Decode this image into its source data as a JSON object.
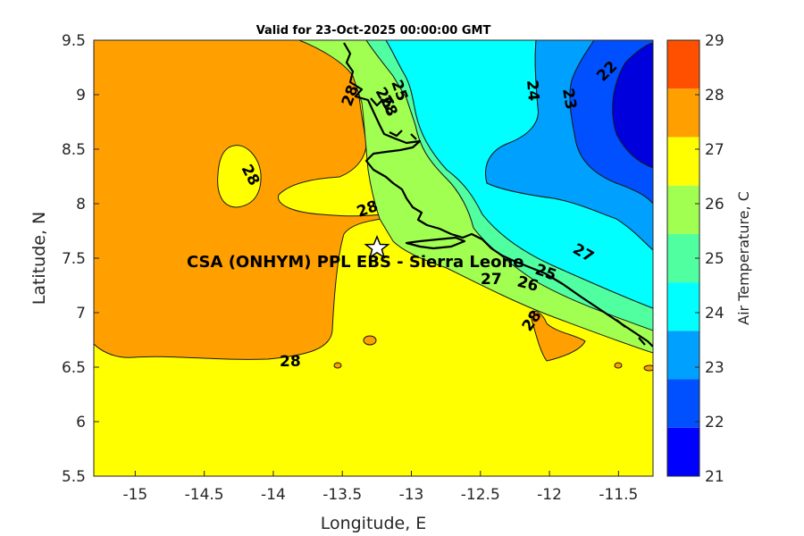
{
  "title": "Valid for 23-Oct-2025 00:00:00 GMT",
  "site_label": "CSA (ONHYM) PPL EBS - Sierra Leone",
  "axes": {
    "xlabel": "Longitude, E",
    "ylabel": "Latitude, N",
    "x_ticks": [
      "-15",
      "-14.5",
      "-14",
      "-13.5",
      "-13",
      "-12.5",
      "-12",
      "-11.5"
    ],
    "y_ticks": [
      "9.5",
      "9",
      "8.5",
      "8",
      "7.5",
      "7",
      "6.5",
      "6",
      "5.5"
    ],
    "xlim": [
      -15.3,
      -11.25
    ],
    "ylim": [
      5.5,
      9.5
    ]
  },
  "colorbar": {
    "label": "Air Temperature, C",
    "ticks": [
      "29",
      "28",
      "27",
      "26",
      "25",
      "24",
      "23",
      "22",
      "21"
    ],
    "range": [
      21,
      29
    ],
    "colors": [
      "#0000ff",
      "#0050ff",
      "#00a0ff",
      "#00ffff",
      "#50ffa0",
      "#a0ff50",
      "#ffff00",
      "#ffa000",
      "#ff5000"
    ]
  },
  "contour_labels": [
    "28",
    "28",
    "28",
    "28",
    "25",
    "26",
    "28",
    "24",
    "23",
    "22",
    "27",
    "27",
    "26",
    "25"
  ],
  "site": {
    "name": "star-marker",
    "lon": -13.25,
    "lat": 7.6
  }
}
